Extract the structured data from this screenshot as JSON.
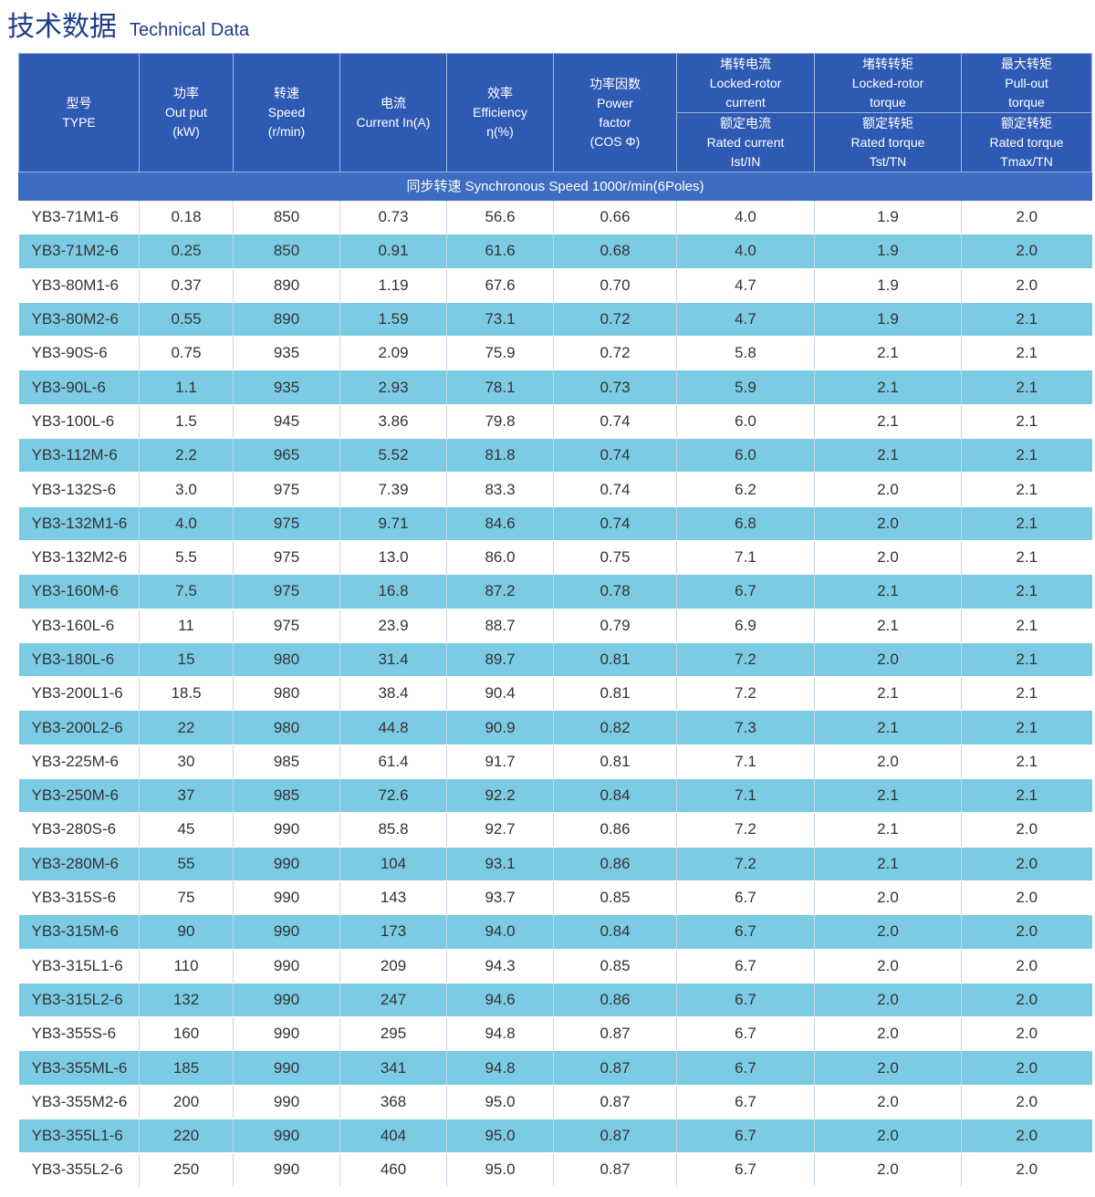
{
  "title": {
    "cn": "技术数据",
    "en": "Technical Data"
  },
  "header": {
    "type": "型号\nTYPE",
    "output": "功率\nOut put\n(kW)",
    "speed": "转速\nSpeed\n(r/min)",
    "current": "电流\nCurrent In(A)",
    "efficiency": "效率\nEfficiency\nη(%)",
    "power_factor": "功率因数\nPower\nfactor\n(COS Φ)",
    "locked_current": "堵转电流\nLocked-rotor\ncurrent",
    "locked_torque": "堵转转矩\nLocked-rotor\ntorque",
    "max_torque": "最大转矩\nPull-out\ntorque",
    "rated_current": "额定电流\nRated current\nIst/IN",
    "rated_torque": "额定转矩\nRated torque\nTst/TN",
    "rated_torque_max": "额定转矩\nRated torque\nTmax/TN",
    "section": "同步转速 Synchronous Speed 1000r/min(6Poles)"
  },
  "rows": [
    [
      "YB3-71M1-6",
      "0.18",
      "850",
      "0.73",
      "56.6",
      "0.66",
      "4.0",
      "1.9",
      "2.0"
    ],
    [
      "YB3-71M2-6",
      "0.25",
      "850",
      "0.91",
      "61.6",
      "0.68",
      "4.0",
      "1.9",
      "2.0"
    ],
    [
      "YB3-80M1-6",
      "0.37",
      "890",
      "1.19",
      "67.6",
      "0.70",
      "4.7",
      "1.9",
      "2.0"
    ],
    [
      "YB3-80M2-6",
      "0.55",
      "890",
      "1.59",
      "73.1",
      "0.72",
      "4.7",
      "1.9",
      "2.1"
    ],
    [
      "YB3-90S-6",
      "0.75",
      "935",
      "2.09",
      "75.9",
      "0.72",
      "5.8",
      "2.1",
      "2.1"
    ],
    [
      "YB3-90L-6",
      "1.1",
      "935",
      "2.93",
      "78.1",
      "0.73",
      "5.9",
      "2.1",
      "2.1"
    ],
    [
      "YB3-100L-6",
      "1.5",
      "945",
      "3.86",
      "79.8",
      "0.74",
      "6.0",
      "2.1",
      "2.1"
    ],
    [
      "YB3-112M-6",
      "2.2",
      "965",
      "5.52",
      "81.8",
      "0.74",
      "6.0",
      "2.1",
      "2.1"
    ],
    [
      "YB3-132S-6",
      "3.0",
      "975",
      "7.39",
      "83.3",
      "0.74",
      "6.2",
      "2.0",
      "2.1"
    ],
    [
      "YB3-132M1-6",
      "4.0",
      "975",
      "9.71",
      "84.6",
      "0.74",
      "6.8",
      "2.0",
      "2.1"
    ],
    [
      "YB3-132M2-6",
      "5.5",
      "975",
      "13.0",
      "86.0",
      "0.75",
      "7.1",
      "2.0",
      "2.1"
    ],
    [
      "YB3-160M-6",
      "7.5",
      "975",
      "16.8",
      "87.2",
      "0.78",
      "6.7",
      "2.1",
      "2.1"
    ],
    [
      "YB3-160L-6",
      "11",
      "975",
      "23.9",
      "88.7",
      "0.79",
      "6.9",
      "2.1",
      "2.1"
    ],
    [
      "YB3-180L-6",
      "15",
      "980",
      "31.4",
      "89.7",
      "0.81",
      "7.2",
      "2.0",
      "2.1"
    ],
    [
      "YB3-200L1-6",
      "18.5",
      "980",
      "38.4",
      "90.4",
      "0.81",
      "7.2",
      "2.1",
      "2.1"
    ],
    [
      "YB3-200L2-6",
      "22",
      "980",
      "44.8",
      "90.9",
      "0.82",
      "7.3",
      "2.1",
      "2.1"
    ],
    [
      "YB3-225M-6",
      "30",
      "985",
      "61.4",
      "91.7",
      "0.81",
      "7.1",
      "2.0",
      "2.1"
    ],
    [
      "YB3-250M-6",
      "37",
      "985",
      "72.6",
      "92.2",
      "0.84",
      "7.1",
      "2.1",
      "2.1"
    ],
    [
      "YB3-280S-6",
      "45",
      "990",
      "85.8",
      "92.7",
      "0.86",
      "7.2",
      "2.1",
      "2.0"
    ],
    [
      "YB3-280M-6",
      "55",
      "990",
      "104",
      "93.1",
      "0.86",
      "7.2",
      "2.1",
      "2.0"
    ],
    [
      "YB3-315S-6",
      "75",
      "990",
      "143",
      "93.7",
      "0.85",
      "6.7",
      "2.0",
      "2.0"
    ],
    [
      "YB3-315M-6",
      "90",
      "990",
      "173",
      "94.0",
      "0.84",
      "6.7",
      "2.0",
      "2.0"
    ],
    [
      "YB3-315L1-6",
      "110",
      "990",
      "209",
      "94.3",
      "0.85",
      "6.7",
      "2.0",
      "2.0"
    ],
    [
      "YB3-315L2-6",
      "132",
      "990",
      "247",
      "94.6",
      "0.86",
      "6.7",
      "2.0",
      "2.0"
    ],
    [
      "YB3-355S-6",
      "160",
      "990",
      "295",
      "94.8",
      "0.87",
      "6.7",
      "2.0",
      "2.0"
    ],
    [
      "YB3-355ML-6",
      "185",
      "990",
      "341",
      "94.8",
      "0.87",
      "6.7",
      "2.0",
      "2.0"
    ],
    [
      "YB3-355M2-6",
      "200",
      "990",
      "368",
      "95.0",
      "0.87",
      "6.7",
      "2.0",
      "2.0"
    ],
    [
      "YB3-355L1-6",
      "220",
      "990",
      "404",
      "95.0",
      "0.87",
      "6.7",
      "2.0",
      "2.0"
    ],
    [
      "YB3-355L2-6",
      "250",
      "990",
      "460",
      "95.0",
      "0.87",
      "6.7",
      "2.0",
      "2.0"
    ]
  ]
}
